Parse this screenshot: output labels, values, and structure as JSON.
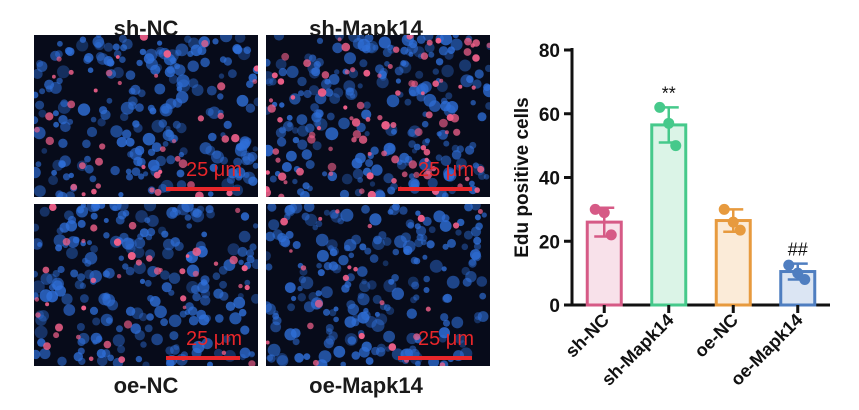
{
  "panels": [
    {
      "id": "sh-nc",
      "label": "sh-NC",
      "scale_text": "25 μm"
    },
    {
      "id": "sh-mapk14",
      "label": "sh-Mapk14",
      "scale_text": "25 μm"
    },
    {
      "id": "oe-nc",
      "label": "oe-NC",
      "scale_text": "25 μm"
    },
    {
      "id": "oe-mapk14",
      "label": "oe-Mapk14",
      "scale_text": "25 μm"
    }
  ],
  "colors": {
    "nuclei": "#2f6fd8",
    "edu": "#f0608a",
    "scale": "#e8262a"
  },
  "chart_data": {
    "type": "bar",
    "ylabel": "Edu positive cells",
    "ylim": [
      0,
      80
    ],
    "yticks": [
      0,
      20,
      40,
      60,
      80
    ],
    "categories": [
      "sh-NC",
      "sh-Mapk14",
      "oe-NC",
      "oe-Mapk14"
    ],
    "values": [
      26,
      56.5,
      26.5,
      10.5
    ],
    "errors": [
      4.5,
      5.5,
      3.5,
      2.5
    ],
    "points": [
      [
        30,
        29,
        22
      ],
      [
        62,
        57,
        50
      ],
      [
        30,
        26,
        23.5
      ],
      [
        12.5,
        10,
        8
      ]
    ],
    "annotations": [
      "",
      "**",
      "",
      "##"
    ],
    "bar_colors": [
      "#d65a86",
      "#46c98b",
      "#e79a3e",
      "#4f7ec0"
    ],
    "fill_colors": [
      "#f8e1ea",
      "#dbf4e7",
      "#fbebd8",
      "#dbe5f3"
    ]
  }
}
